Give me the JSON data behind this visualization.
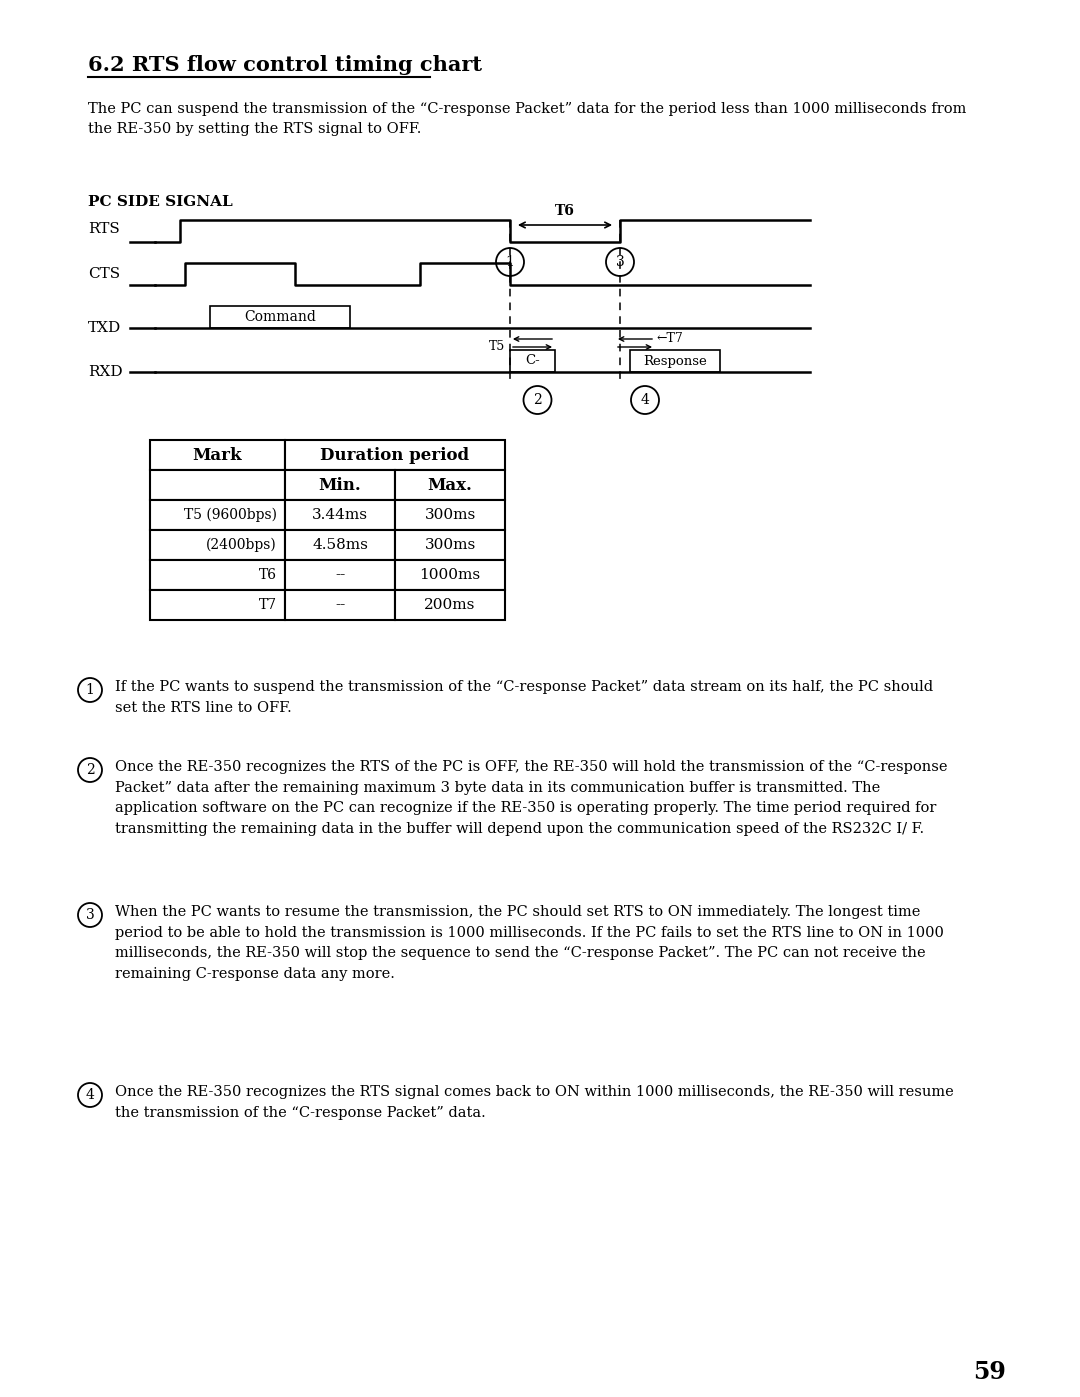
{
  "title": "6.2 RTS flow control timing chart",
  "intro_text": "The PC can suspend the transmission of the “C-response Packet” data for the period less than 1000 milliseconds from\nthe RE-350 by setting the RTS signal to OFF.",
  "pc_side_label": "PC SIDE SIGNAL",
  "table_rows": [
    [
      "T5 (9600bps)",
      "3.44ms",
      "300ms"
    ],
    [
      "(2400bps)",
      "4.58ms",
      "300ms"
    ],
    [
      "T6",
      "--",
      "1000ms"
    ],
    [
      "T7",
      "--",
      "200ms"
    ]
  ],
  "note1": "If the PC wants to suspend the transmission of the “C-response Packet” data stream on its half, the PC should\nset the RTS line to OFF.",
  "note2": "Once the RE-350 recognizes the RTS of the PC is OFF, the RE-350 will hold the transmission of the “C-response\nPacket” data after the remaining maximum 3 byte data in its communication buffer is transmitted. The\napplication software on the PC can recognize if the RE-350 is operating properly. The time period required for\ntransmitting the remaining data in the buffer will depend upon the communication speed of the RS232C I/ F.",
  "note3": "When the PC wants to resume the transmission, the PC should set RTS to ON immediately. The longest time\nperiod to be able to hold the transmission is 1000 milliseconds. If the PC fails to set the RTS line to ON in 1000\nmilliseconds, the RE-350 will stop the sequence to send the “C-response Packet”. The PC can not receive the\nremaining C-response data any more.",
  "note4": "Once the RE-350 recognizes the RTS signal comes back to ON within 1000 milliseconds, the RE-350 will resume\nthe transmission of the “C-response Packet” data.",
  "page_number": "59",
  "bg_color": "#ffffff",
  "text_color": "#000000"
}
